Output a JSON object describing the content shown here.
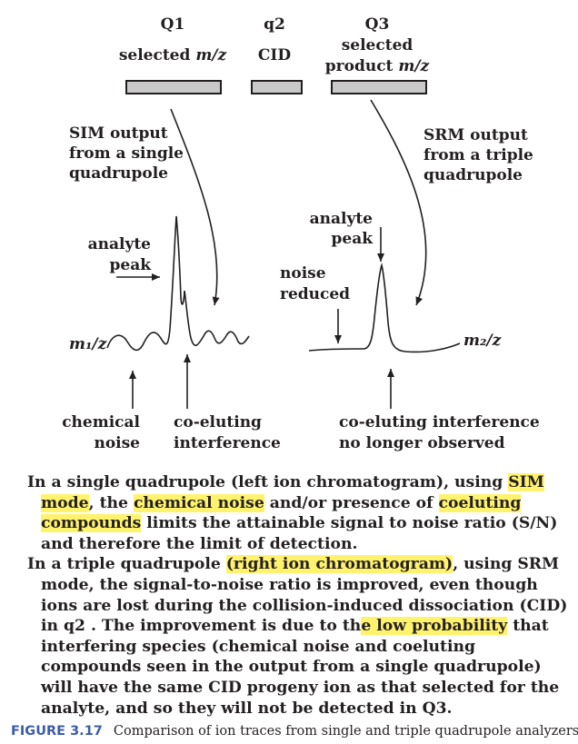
{
  "stages": {
    "q1": {
      "name": "Q1",
      "caption_pre": "selected ",
      "caption_unit": "m/z"
    },
    "q2": {
      "name": "q2",
      "caption": "CID"
    },
    "q3": {
      "name": "Q3",
      "caption_line1": "selected",
      "caption_pre": "product ",
      "caption_unit": "m/z"
    }
  },
  "left_trace": {
    "output_label": [
      "SIM output",
      "from a single",
      "quadrupole"
    ],
    "peak_label": [
      "analyte",
      "peak"
    ],
    "axis_label": "m₁/z",
    "bottom_left": [
      "chemical",
      "noise"
    ],
    "bottom_right": [
      "co-eluting",
      "interference"
    ]
  },
  "right_trace": {
    "output_label": [
      "SRM output",
      "from a triple",
      "quadrupole"
    ],
    "peak_label": [
      "analyte",
      "peak"
    ],
    "noise_label": [
      "noise",
      "reduced"
    ],
    "axis_label": "m₂/z",
    "bottom": [
      "co-eluting interference",
      "no longer observed"
    ]
  },
  "paragraph1": {
    "t1": "In a single quadrupole (left ion chromatogram), using ",
    "h1": "SIM mode",
    "t2": ", the ",
    "h2": "chemical noise",
    "t3": " and/or presence of ",
    "h3": "coeluting compounds",
    "t4": " limits the attainable signal to noise ratio (S/N) and therefore the limit of detection."
  },
  "paragraph2": {
    "t1": "In a triple quadrupole ",
    "h1": "(right ion chromatogram)",
    "t2": ", using SRM mode, the signal-to-noise ratio is improved, even though ions are lost during the collision-induced dissociation (CID) in q2 . The improvement is due to th",
    "h2": "e low probability",
    "t3": " that interfering species (chemical noise and coeluting compounds seen in the output from a single quadrupole) will have the same CID progeny ion as that selected for the analyte, and so they will not be detected in Q3."
  },
  "caption": {
    "figure": "FIGURE 3.17",
    "text": "Comparison of ion traces from single and triple quadrupole analyzers."
  }
}
